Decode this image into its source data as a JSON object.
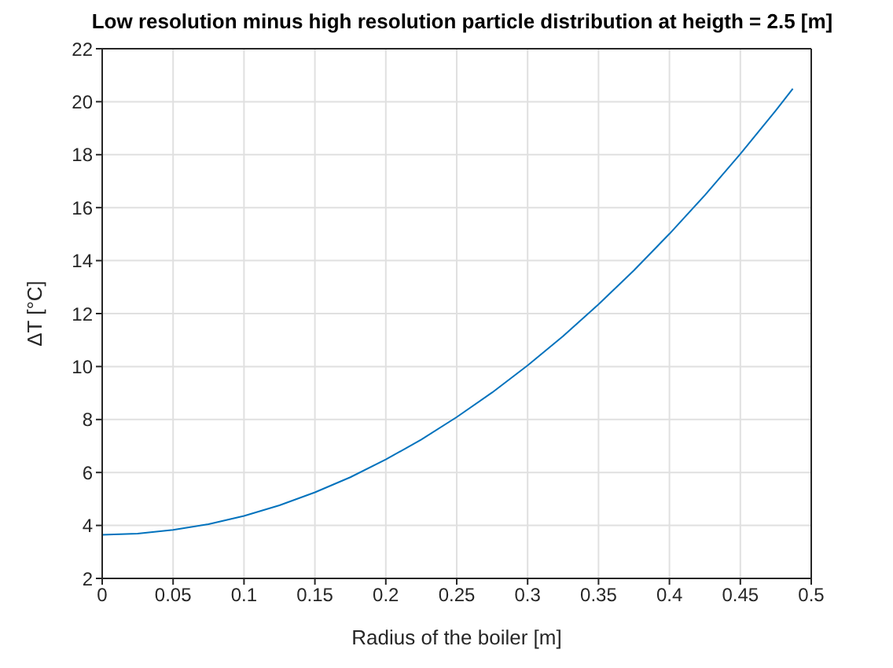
{
  "chart_data": {
    "type": "line",
    "title": "Low resolution minus high resolution particle distribution at heigth = 2.5 [m]",
    "xlabel": "Radius of the boiler [m]",
    "ylabel": "ΔT [°C]",
    "x": [
      0,
      0.025,
      0.05,
      0.075,
      0.1,
      0.125,
      0.15,
      0.175,
      0.2,
      0.225,
      0.25,
      0.275,
      0.3,
      0.325,
      0.35,
      0.375,
      0.4,
      0.425,
      0.45,
      0.475,
      0.487
    ],
    "series": [
      {
        "color": "#0072bd",
        "values": [
          3.65,
          3.69,
          3.83,
          4.05,
          4.36,
          4.76,
          5.25,
          5.82,
          6.49,
          7.24,
          8.09,
          9.02,
          10.04,
          11.15,
          12.35,
          13.63,
          15.01,
          16.47,
          18.03,
          19.67,
          20.49
        ]
      }
    ],
    "xlim": [
      0,
      0.5
    ],
    "xticks": [
      0,
      0.05,
      0.1,
      0.15,
      0.2,
      0.25,
      0.3,
      0.35,
      0.4,
      0.45,
      0.5
    ],
    "ylim": [
      2,
      22
    ],
    "yticks": [
      2,
      4,
      6,
      8,
      10,
      12,
      14,
      16,
      18,
      20,
      22
    ],
    "grid": true,
    "marker": "none",
    "line_style": "solid"
  }
}
